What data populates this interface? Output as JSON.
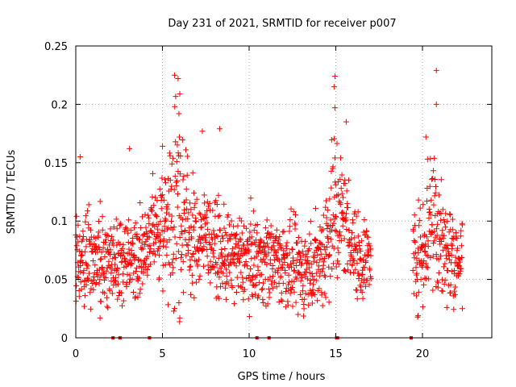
{
  "chart_data": {
    "type": "scatter",
    "title": "Day 231 of 2021, SRMTID for receiver p007",
    "xlabel": "GPS time / hours",
    "ylabel": "SRMTID / TECUs",
    "xlim": [
      0,
      24
    ],
    "ylim": [
      0,
      0.25
    ],
    "x_ticks": [
      0,
      5,
      10,
      15,
      20
    ],
    "x_tick_labels": [
      "0",
      "5",
      "10",
      "15",
      "20"
    ],
    "y_ticks": [
      0,
      0.05,
      0.1,
      0.15,
      0.2,
      0.25
    ],
    "y_tick_labels": [
      "0",
      "0.05",
      "0.1",
      "0.15",
      "0.2",
      "0.25"
    ],
    "grid": true,
    "marker": "+",
    "color": "#ff0000",
    "series": [
      {
        "name": "SRMTID",
        "segments": [
          {
            "x_start": 0.0,
            "x_end": 17.05,
            "dense": true
          },
          {
            "x_start": 19.45,
            "x_end": 22.3,
            "dense": true
          }
        ]
      }
    ],
    "highlight_points": [
      {
        "x": 0.25,
        "y": 0.155
      },
      {
        "x": 3.1,
        "y": 0.162
      },
      {
        "x": 1.4,
        "y": 0.017
      },
      {
        "x": 5.7,
        "y": 0.225
      },
      {
        "x": 5.9,
        "y": 0.222
      },
      {
        "x": 6.0,
        "y": 0.209
      },
      {
        "x": 5.95,
        "y": 0.192
      },
      {
        "x": 7.3,
        "y": 0.177
      },
      {
        "x": 8.3,
        "y": 0.179
      },
      {
        "x": 6.0,
        "y": 0.017
      },
      {
        "x": 14.95,
        "y": 0.224
      },
      {
        "x": 14.9,
        "y": 0.215
      },
      {
        "x": 14.95,
        "y": 0.197
      },
      {
        "x": 15.6,
        "y": 0.185
      },
      {
        "x": 20.8,
        "y": 0.229
      },
      {
        "x": 20.8,
        "y": 0.2
      },
      {
        "x": 20.2,
        "y": 0.172
      },
      {
        "x": 22.3,
        "y": 0.025
      }
    ],
    "zero_markers_x": [
      2.15,
      2.55,
      4.25,
      10.45,
      11.15,
      15.05,
      15.1,
      19.35
    ]
  }
}
